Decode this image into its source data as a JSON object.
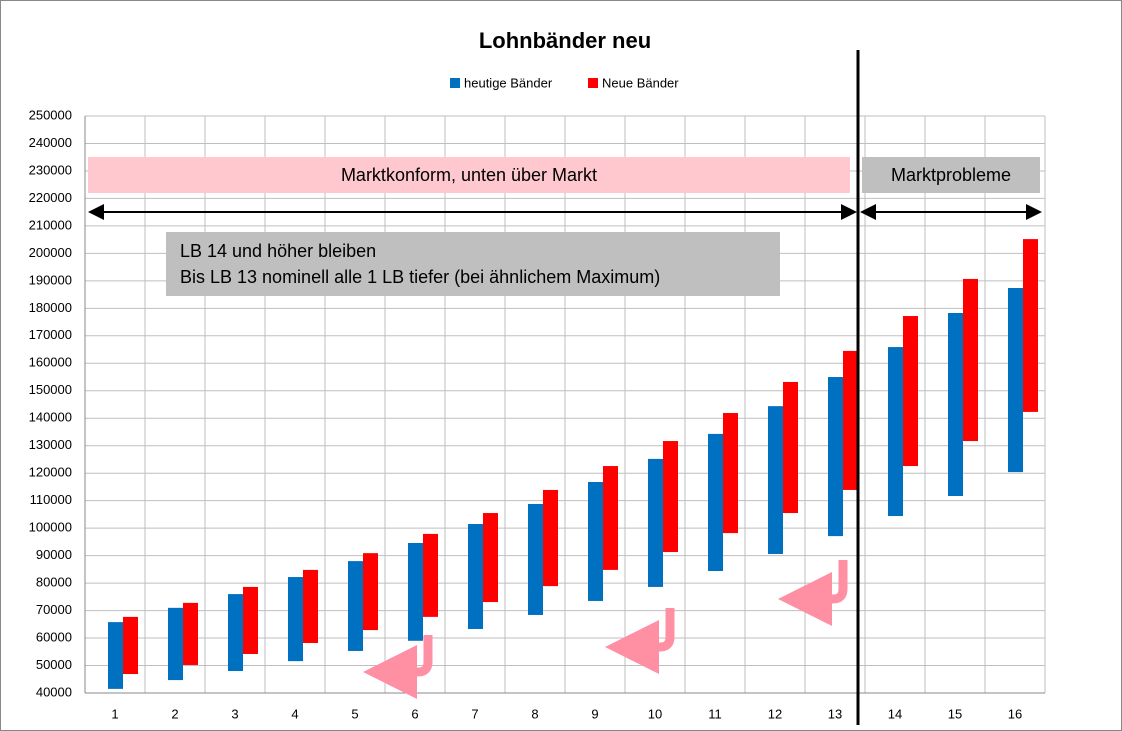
{
  "chart_data": {
    "type": "range-bar",
    "title": "Lohnbänder neu",
    "categories": [
      "1",
      "2",
      "3",
      "4",
      "5",
      "6",
      "7",
      "8",
      "9",
      "10",
      "11",
      "12",
      "13",
      "14",
      "15",
      "16"
    ],
    "series": [
      {
        "name": "heutige Bänder",
        "color": "#0070c0",
        "low": [
          41500,
          44700,
          48000,
          51600,
          55300,
          59000,
          63300,
          68400,
          73500,
          78600,
          84400,
          90600,
          97100,
          104400,
          111700,
          120400
        ],
        "high": [
          65800,
          71000,
          76000,
          82200,
          88000,
          94600,
          101500,
          108800,
          116800,
          125200,
          134300,
          144400,
          155000,
          165900,
          178300,
          187400
        ]
      },
      {
        "name": "Neue Bänder",
        "color": "#ff0000",
        "low": [
          46900,
          50200,
          54200,
          58200,
          62900,
          67700,
          73100,
          78900,
          84800,
          91300,
          98200,
          105500,
          113900,
          122600,
          131700,
          142300
        ],
        "high": [
          67700,
          72800,
          78600,
          84800,
          90900,
          97900,
          105500,
          113900,
          122600,
          131700,
          141900,
          153200,
          164500,
          177200,
          190700,
          205200
        ]
      }
    ],
    "ylim": [
      40000,
      250000
    ],
    "yticks": [
      40000,
      50000,
      60000,
      70000,
      80000,
      90000,
      100000,
      110000,
      120000,
      130000,
      140000,
      150000,
      160000,
      170000,
      180000,
      190000,
      200000,
      210000,
      220000,
      230000,
      240000,
      250000
    ],
    "grid": true,
    "annotations": [
      "Marktkonform, unten über Markt",
      "Marktprobleme",
      "LB 14 und höher bleiben",
      "Bis LB 13 nominell alle 1 LB tiefer (bei ähnlichem Maximum)"
    ]
  }
}
